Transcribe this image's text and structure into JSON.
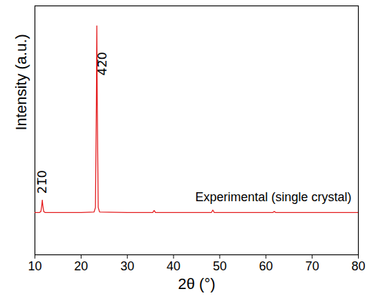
{
  "chart_data": {
    "type": "line",
    "x_label": "2θ (°)",
    "y_label": "Intensity (a.u.)",
    "x": [
      10,
      11,
      11.3,
      11.5,
      11.6,
      11.7,
      11.9,
      12.2,
      15,
      20,
      22.8,
      23.1,
      23.3,
      23.4,
      23.5,
      23.7,
      24,
      30,
      35.5,
      35.8,
      36.1,
      40,
      48.2,
      48.5,
      48.8,
      55,
      61.5,
      61.8,
      62.1,
      70,
      80
    ],
    "series": [
      {
        "name": "Experimental (single crystal)",
        "color": "#e41a1c",
        "values": [
          17,
          17,
          17.4,
          20,
          22,
          20,
          17.4,
          17,
          17,
          17,
          17.2,
          19,
          60,
          92,
          60,
          19,
          17.2,
          17,
          17,
          17.8,
          17,
          17,
          17,
          18,
          17,
          17,
          17,
          17.4,
          17,
          17,
          17
        ]
      }
    ],
    "xlim": [
      10,
      80
    ],
    "xticks": [
      10,
      20,
      30,
      40,
      50,
      60,
      70,
      80
    ],
    "ylim": [
      0,
      100
    ],
    "yticks": [],
    "tick_labels": "x",
    "peak_labels": [
      {
        "text": "21̅0",
        "x": 11.6,
        "y": 24.5
      },
      {
        "text": "42̅0",
        "x": 24.6,
        "y": 72
      }
    ],
    "annotations": [
      {
        "text": "Experimental (single crystal)",
        "x": 78.5,
        "y": 21.5
      }
    ]
  }
}
